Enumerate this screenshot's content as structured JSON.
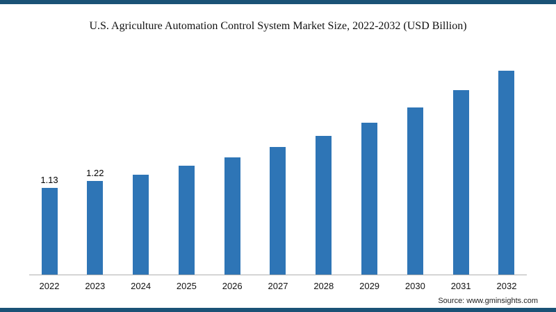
{
  "page": {
    "background": "#ffffff",
    "border_strip_color": "#1a5276"
  },
  "chart_data": {
    "type": "bar",
    "title": "U.S. Agriculture Automation Control System Market Size, 2022-2032 (USD Billion)",
    "categories": [
      "2022",
      "2023",
      "2024",
      "2025",
      "2026",
      "2027",
      "2028",
      "2029",
      "2030",
      "2031",
      "2032"
    ],
    "values": [
      1.13,
      1.22,
      1.3,
      1.41,
      1.52,
      1.66,
      1.8,
      1.97,
      2.17,
      2.4,
      2.65
    ],
    "data_labels": [
      "1.13",
      "1.22",
      "",
      "",
      "",
      "",
      "",
      "",
      "",
      "",
      ""
    ],
    "xlabel": "",
    "ylabel": "",
    "ylim": [
      0,
      3
    ],
    "grid": false,
    "legend": false,
    "bar_color": "#2e75b6",
    "axis_color": "#b0b0b0"
  },
  "footer": {
    "source": "Source: www.gminsights.com"
  }
}
